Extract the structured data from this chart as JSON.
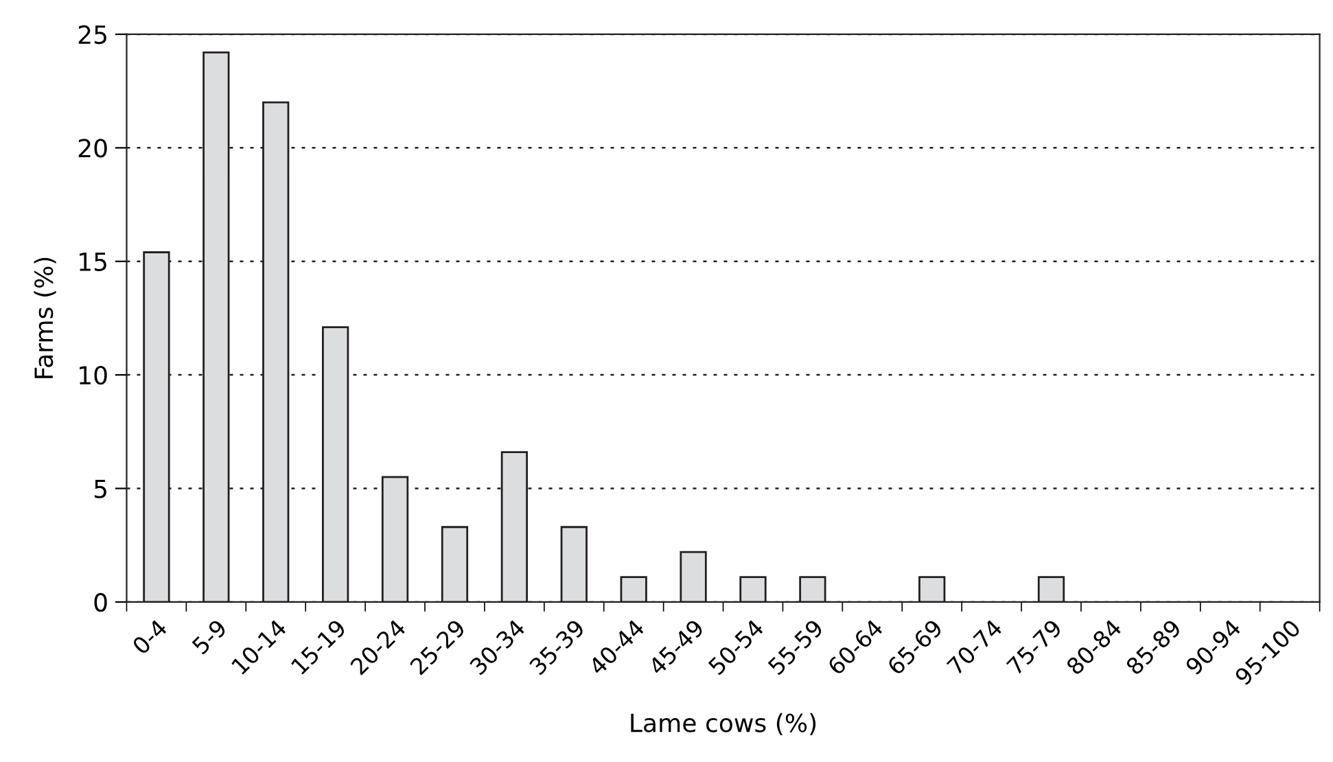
{
  "chart_data": {
    "type": "bar",
    "xlabel": "Lame cows (%)",
    "ylabel": "Farms (%)",
    "categories": [
      "0-4",
      "5-9",
      "10-14",
      "15-19",
      "20-24",
      "25-29",
      "30-34",
      "35-39",
      "40-44",
      "45-49",
      "50-54",
      "55-59",
      "60-64",
      "65-69",
      "70-74",
      "75-79",
      "80-84",
      "85-89",
      "90-94",
      "95-100"
    ],
    "values": [
      15.4,
      24.2,
      22.0,
      12.1,
      5.5,
      3.3,
      6.6,
      3.3,
      1.1,
      2.2,
      1.1,
      1.1,
      0,
      1.1,
      0,
      1.1,
      0,
      0,
      0,
      0
    ],
    "color": "#dcdddf",
    "ylim": [
      0,
      25
    ],
    "yticks": [
      0,
      5,
      10,
      15,
      20,
      25
    ],
    "grid": "y"
  }
}
